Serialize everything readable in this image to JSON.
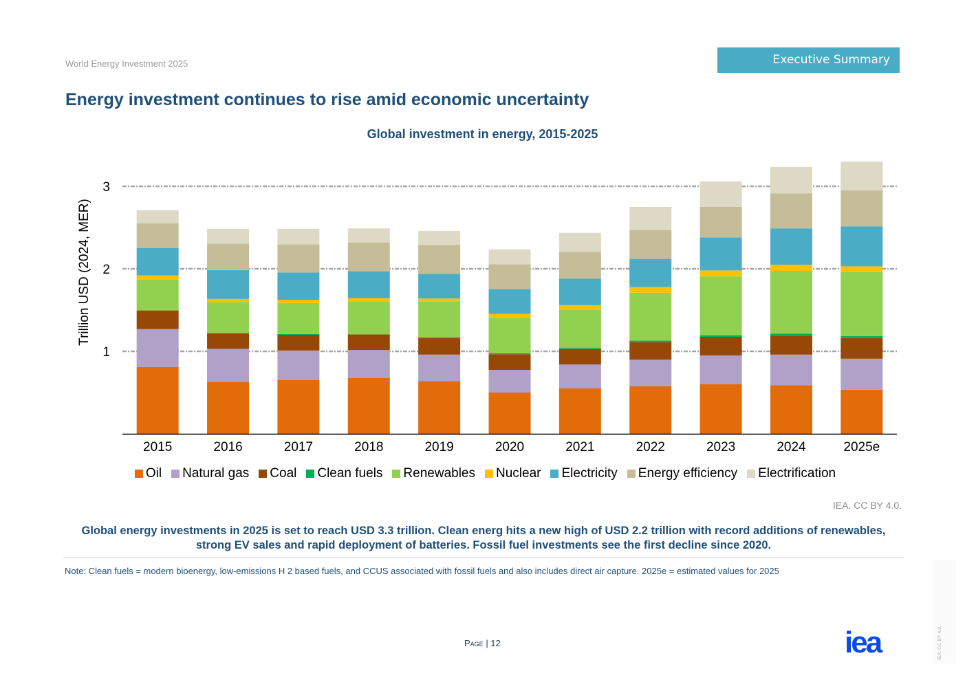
{
  "header": {
    "doc_title": "World Energy Investment 2025",
    "section_tag": "Executive Summary",
    "page_heading": "Energy investment continues to rise amid economic uncertainty"
  },
  "colors": {
    "heading": "#1f4e79",
    "section_tag_bg": "#4aabc7",
    "logo": "#0a4ae6"
  },
  "chart_data": {
    "type": "bar",
    "stacked": true,
    "title": "Global investment in energy, 2015-2025",
    "xlabel": "",
    "ylabel": "Trillion USD (2024, MER)",
    "ylim": [
      0,
      3.3
    ],
    "yticks": [
      1,
      2,
      3
    ],
    "grid": "horizontal-dashed",
    "legend_position": "bottom",
    "categories": [
      "2015",
      "2016",
      "2017",
      "2018",
      "2019",
      "2020",
      "2021",
      "2022",
      "2023",
      "2024",
      "2025e"
    ],
    "series": [
      {
        "name": "Oil",
        "color": "#e36c0a",
        "values": [
          0.81,
          0.63,
          0.65,
          0.675,
          0.64,
          0.5,
          0.55,
          0.575,
          0.6,
          0.59,
          0.535
        ]
      },
      {
        "name": "Natural gas",
        "color": "#b1a0c7",
        "values": [
          0.46,
          0.4,
          0.36,
          0.34,
          0.32,
          0.275,
          0.29,
          0.325,
          0.35,
          0.37,
          0.375
        ]
      },
      {
        "name": "Coal",
        "color": "#974706",
        "values": [
          0.225,
          0.19,
          0.19,
          0.19,
          0.2,
          0.19,
          0.19,
          0.21,
          0.225,
          0.23,
          0.25
        ]
      },
      {
        "name": "Clean fuels",
        "color": "#00b050",
        "values": [
          0.0,
          0.0,
          0.01,
          0.0,
          0.01,
          0.01,
          0.01,
          0.02,
          0.02,
          0.025,
          0.025
        ]
      },
      {
        "name": "Renewables",
        "color": "#92d050",
        "values": [
          0.375,
          0.375,
          0.375,
          0.4,
          0.43,
          0.43,
          0.46,
          0.58,
          0.715,
          0.76,
          0.78
        ]
      },
      {
        "name": "Nuclear",
        "color": "#ffc000",
        "values": [
          0.05,
          0.04,
          0.04,
          0.04,
          0.04,
          0.05,
          0.06,
          0.07,
          0.07,
          0.075,
          0.065
        ]
      },
      {
        "name": "Electricity",
        "color": "#4bacc6",
        "values": [
          0.33,
          0.35,
          0.33,
          0.325,
          0.3,
          0.3,
          0.32,
          0.34,
          0.4,
          0.44,
          0.485
        ]
      },
      {
        "name": "Energy efficiency",
        "color": "#c4bd97",
        "values": [
          0.3,
          0.32,
          0.34,
          0.35,
          0.35,
          0.3,
          0.325,
          0.35,
          0.37,
          0.425,
          0.435
        ]
      },
      {
        "name": "Electrification",
        "color": "#ddd9c4",
        "values": [
          0.16,
          0.18,
          0.19,
          0.17,
          0.17,
          0.18,
          0.23,
          0.28,
          0.31,
          0.32,
          0.35
        ]
      }
    ]
  },
  "footer": {
    "credit": "IEA. CC BY 4.0.",
    "summary_line1": "Global energy investments in 2025 is set to reach USD 3.3 trillion. Clean energ hits a new high of USD 2.2 trillion with record additions of renewables,",
    "summary_line2": "strong EV sales and rapid deployment of batteries. Fossil fuel investments see the first decline since 2020.",
    "note": "Note: Clean fuels = modern bioenergy, low-emissions H 2 based fuels, and CCUS associated with fossil fuels and also includes direct air capture. 2025e = estimated values for 2025",
    "page_label": "Page",
    "page_number": "| 12",
    "logo_text": "iea",
    "side_credit": "IEA. CC BY 4.0."
  }
}
